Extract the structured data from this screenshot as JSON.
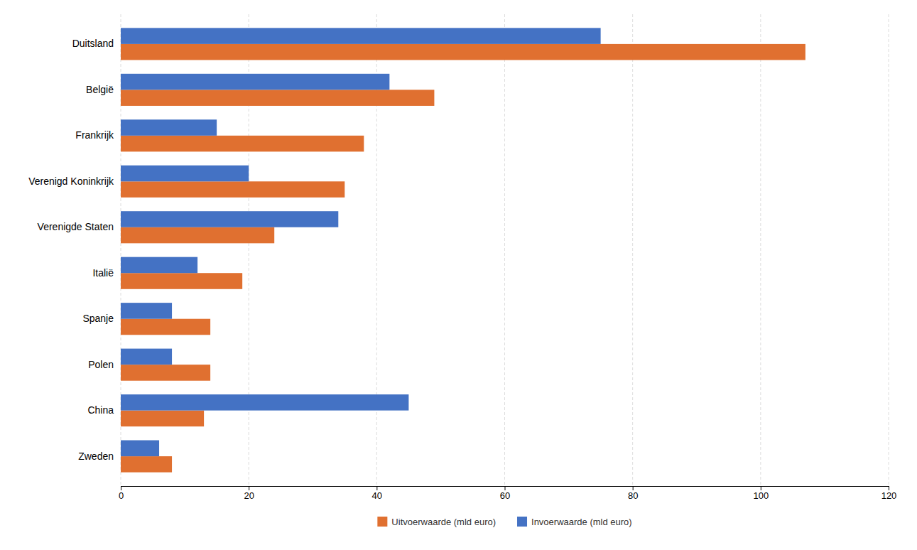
{
  "chart_data": {
    "type": "bar",
    "orientation": "horizontal",
    "categories": [
      "Duitsland",
      "België",
      "Frankrijk",
      "Verenigd Koninkrijk",
      "Verenigde Staten",
      "Italië",
      "Spanje",
      "Polen",
      "China",
      "Zweden"
    ],
    "series": [
      {
        "name": "Uitvoerwaarde (mld euro)",
        "color": "#E07030",
        "values": [
          107,
          49,
          38,
          35,
          24,
          19,
          14,
          14,
          13,
          8
        ]
      },
      {
        "name": "Invoerwaarde (mld euro)",
        "color": "#4472C4",
        "values": [
          75,
          42,
          15,
          20,
          34,
          12,
          8,
          8,
          45,
          6
        ]
      }
    ],
    "xlim": [
      0,
      120
    ],
    "xticks": [
      0,
      20,
      40,
      60,
      80,
      100,
      120
    ],
    "grid": true,
    "legend": "bottom"
  }
}
